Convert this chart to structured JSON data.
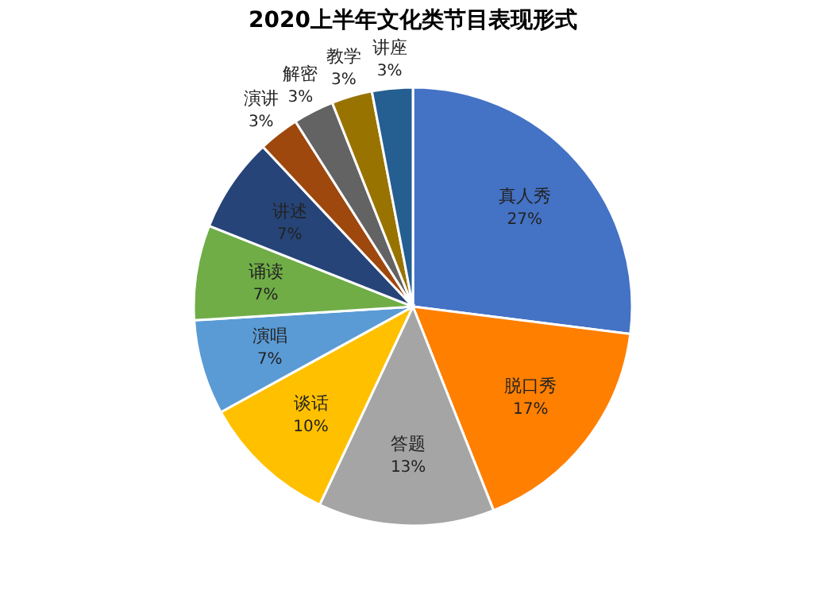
{
  "chart_data": {
    "type": "pie",
    "title": "2020上半年文化类节目表现形式",
    "categories": [
      "真人秀",
      "脱口秀",
      "答题",
      "谈话",
      "演唱",
      "诵读",
      "讲述",
      "演讲",
      "解密",
      "教学",
      "讲座"
    ],
    "values": [
      27,
      17,
      13,
      10,
      7,
      7,
      7,
      3,
      3,
      3,
      3
    ],
    "value_labels": [
      "27%",
      "17%",
      "13%",
      "10%",
      "7%",
      "7%",
      "7%",
      "3%",
      "3%",
      "3%",
      "3%"
    ],
    "colors": [
      "#4472c4",
      "#ff7f00",
      "#a5a5a5",
      "#ffc000",
      "#5b9bd5",
      "#70ad47",
      "#264478",
      "#9e480e",
      "#636363",
      "#997300",
      "#255e91"
    ]
  }
}
